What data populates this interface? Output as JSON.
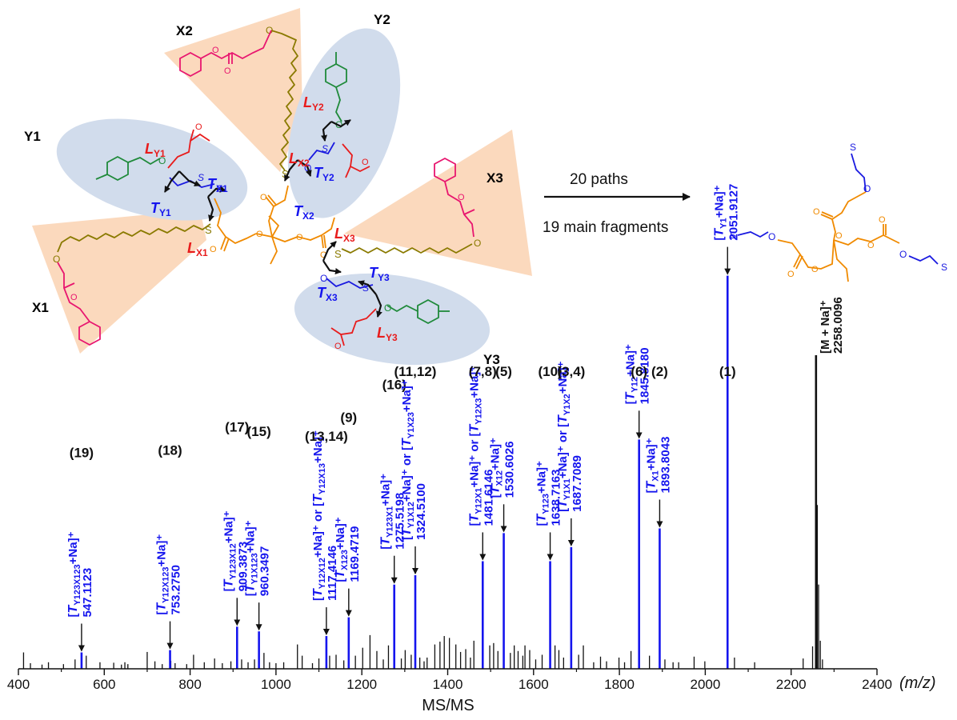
{
  "colors": {
    "arm_yellow": "#8a7a00",
    "benzyl_pink": "#e8166f",
    "tolyl_green": "#1f8a3a",
    "core_orange": "#f08a00",
    "thioether_blue": "#1a1ae0",
    "lactone_red": "#e81c1c",
    "fragment_blue": "#1515ee",
    "axis_black": "#111111",
    "arm_fill_salmon": "#fbd9bd",
    "arm_fill_blue": "#d1dcec"
  },
  "structure": {
    "arm_labels": {
      "x1": "X1",
      "x2": "X2",
      "x3": "X3",
      "y1": "Y1",
      "y2": "Y2",
      "y3": "Y3"
    },
    "cleavage_labels": [
      {
        "id": "l-y1",
        "main": "L",
        "sub": "Y1"
      },
      {
        "id": "t-y1",
        "main": "T",
        "sub": "Y1"
      },
      {
        "id": "t-x1",
        "main": "T",
        "sub": "X1"
      },
      {
        "id": "l-x1",
        "main": "L",
        "sub": "X1"
      },
      {
        "id": "l-y2",
        "main": "L",
        "sub": "Y2"
      },
      {
        "id": "l-x2",
        "main": "L",
        "sub": "X2"
      },
      {
        "id": "t-y2",
        "main": "T",
        "sub": "Y2"
      },
      {
        "id": "t-x2",
        "main": "T",
        "sub": "X2"
      },
      {
        "id": "l-x3",
        "main": "L",
        "sub": "X3"
      },
      {
        "id": "t-y3",
        "main": "T",
        "sub": "Y3"
      },
      {
        "id": "t-x3",
        "main": "T",
        "sub": "X3"
      },
      {
        "id": "l-y3",
        "main": "L",
        "sub": "Y3"
      }
    ],
    "atom_labels": {
      "oxygen": "O",
      "sulfur": "S"
    }
  },
  "reaction": {
    "paths": "20 paths",
    "fragments": "19 main fragments"
  },
  "chart_data": {
    "type": "bar",
    "xlabel": "MS/MS",
    "x_unit": "(m/z)",
    "xlim": [
      400,
      2400
    ],
    "xticks": [
      400,
      600,
      800,
      1000,
      1200,
      1400,
      1600,
      1800,
      2000,
      2200,
      2400
    ],
    "series": [
      {
        "values": [
          {
            "id": "f19",
            "num": "(19)",
            "sub": "Y123X123",
            "mass": "547.1123",
            "mz": 547.1123,
            "rel": 0.035,
            "prefix": "",
            "mid": "",
            "sub2": ""
          },
          {
            "id": "f18",
            "num": "(18)",
            "sub": "Y12X123",
            "mass": "753.2750",
            "mz": 753.275,
            "rel": 0.04,
            "prefix": "",
            "mid": "",
            "sub2": ""
          },
          {
            "id": "f17",
            "num": "(17)",
            "sub": "Y123X12",
            "mass": "909.3873",
            "mz": 909.3873,
            "rel": 0.09,
            "prefix": "",
            "mid": "",
            "sub2": ""
          },
          {
            "id": "f15",
            "num": "(15)",
            "sub": "Y1X123",
            "mass": "960.3497",
            "mz": 960.3497,
            "rel": 0.08,
            "prefix": "",
            "mid": "",
            "sub2": ""
          },
          {
            "id": "f13",
            "num": "(13,14)",
            "sub": "Y12X12",
            "mass": "1117.4146",
            "mz": 1117.4146,
            "rel": 0.07,
            "prefix": "",
            "mid": "+Na]⁺ or [",
            "sub2": "Y12X13"
          },
          {
            "id": "f9",
            "num": "(9)",
            "sub": "X123",
            "mass": "1169.4719",
            "mz": 1169.4719,
            "rel": 0.11,
            "prefix": "",
            "mid": "",
            "sub2": ""
          },
          {
            "id": "f16",
            "num": "(16)",
            "sub": "Y123X1",
            "mass": "1275.5198",
            "mz": 1275.5198,
            "rel": 0.18,
            "prefix": "",
            "mid": "",
            "sub2": ""
          },
          {
            "id": "f11",
            "num": "(11,12)",
            "sub": "Y1X12",
            "mass": "1324.5100",
            "mz": 1324.51,
            "rel": 0.2,
            "prefix": "",
            "mid": "+Na]⁺ or [",
            "sub2": "Y1X23"
          },
          {
            "id": "f7",
            "num": "(7,8)",
            "sub": "Y12X1",
            "mass": "1481.6146",
            "mz": 1481.6146,
            "rel": 0.23,
            "prefix": "",
            "mid": "+Na]⁺ or [",
            "sub2": "Y12X3"
          },
          {
            "id": "f5",
            "num": "(5)",
            "sub": "X12",
            "mass": "1530.6026",
            "mz": 1530.6026,
            "rel": 0.29,
            "prefix": "",
            "mid": "",
            "sub2": ""
          },
          {
            "id": "f10",
            "num": "(10)",
            "sub": "Y123",
            "mass": "1638.7163",
            "mz": 1638.7163,
            "rel": 0.23,
            "prefix": "",
            "mid": "",
            "sub2": ""
          },
          {
            "id": "f3",
            "num": "(3,4)",
            "sub": "Y1X1",
            "mass": "1687.7089",
            "mz": 1687.7089,
            "rel": 0.26,
            "prefix": "",
            "mid": "+Na]⁺ or [",
            "sub2": "Y1X2"
          },
          {
            "id": "f6",
            "num": "(6)",
            "sub": "Y12",
            "mass": "1845.8180",
            "mz": 1845.818,
            "rel": 0.49,
            "prefix": "",
            "mid": "",
            "sub2": ""
          },
          {
            "id": "f2",
            "num": "(2)",
            "sub": "X1",
            "mass": "1893.8043",
            "mz": 1893.8043,
            "rel": 0.3,
            "prefix": "",
            "mid": "",
            "sub2": ""
          },
          {
            "id": "f1",
            "num": "(1)",
            "sub": "Y1",
            "mass": "2051.9127",
            "mz": 2051.9127,
            "rel": 0.84,
            "prefix": "",
            "mid": "",
            "sub2": ""
          }
        ]
      },
      {
        "values": [
          {
            "id": "parent",
            "label": "[M + Na]⁺",
            "mass": "2258.0096",
            "mz": 2258.0096,
            "rel": 0.67
          }
        ]
      },
      {
        "values": [
          [
            412,
            0.035
          ],
          [
            428,
            0.012
          ],
          [
            455,
            0.009
          ],
          [
            470,
            0.014
          ],
          [
            505,
            0.01
          ],
          [
            532,
            0.02
          ],
          [
            547,
            0.035
          ],
          [
            558,
            0.028
          ],
          [
            590,
            0.014
          ],
          [
            622,
            0.013
          ],
          [
            640,
            0.009
          ],
          [
            648,
            0.014
          ],
          [
            655,
            0.01
          ],
          [
            700,
            0.036
          ],
          [
            718,
            0.016
          ],
          [
            735,
            0.01
          ],
          [
            755,
            0.017
          ],
          [
            765,
            0.012
          ],
          [
            792,
            0.01
          ],
          [
            808,
            0.03
          ],
          [
            833,
            0.014
          ],
          [
            857,
            0.022
          ],
          [
            875,
            0.012
          ],
          [
            895,
            0.016
          ],
          [
            920,
            0.02
          ],
          [
            935,
            0.014
          ],
          [
            950,
            0.02
          ],
          [
            972,
            0.034
          ],
          [
            985,
            0.014
          ],
          [
            1000,
            0.012
          ],
          [
            1018,
            0.014
          ],
          [
            1050,
            0.052
          ],
          [
            1061,
            0.028
          ],
          [
            1085,
            0.012
          ],
          [
            1100,
            0.022
          ],
          [
            1125,
            0.028
          ],
          [
            1140,
            0.03
          ],
          [
            1158,
            0.018
          ],
          [
            1185,
            0.028
          ],
          [
            1202,
            0.045
          ],
          [
            1219,
            0.072
          ],
          [
            1235,
            0.038
          ],
          [
            1250,
            0.02
          ],
          [
            1262,
            0.05
          ],
          [
            1292,
            0.022
          ],
          [
            1301,
            0.04
          ],
          [
            1315,
            0.03
          ],
          [
            1335,
            0.024
          ],
          [
            1345,
            0.016
          ],
          [
            1352,
            0.024
          ],
          [
            1370,
            0.052
          ],
          [
            1382,
            0.058
          ],
          [
            1392,
            0.07
          ],
          [
            1404,
            0.066
          ],
          [
            1419,
            0.052
          ],
          [
            1430,
            0.036
          ],
          [
            1442,
            0.042
          ],
          [
            1453,
            0.024
          ],
          [
            1461,
            0.06
          ],
          [
            1498,
            0.05
          ],
          [
            1507,
            0.055
          ],
          [
            1517,
            0.038
          ],
          [
            1546,
            0.034
          ],
          [
            1555,
            0.05
          ],
          [
            1564,
            0.038
          ],
          [
            1575,
            0.028
          ],
          [
            1580,
            0.05
          ],
          [
            1591,
            0.04
          ],
          [
            1605,
            0.02
          ],
          [
            1620,
            0.03
          ],
          [
            1650,
            0.05
          ],
          [
            1659,
            0.04
          ],
          [
            1670,
            0.024
          ],
          [
            1705,
            0.03
          ],
          [
            1716,
            0.05
          ],
          [
            1740,
            0.014
          ],
          [
            1756,
            0.026
          ],
          [
            1770,
            0.016
          ],
          [
            1799,
            0.024
          ],
          [
            1812,
            0.014
          ],
          [
            1827,
            0.038
          ],
          [
            1870,
            0.028
          ],
          [
            1906,
            0.02
          ],
          [
            1925,
            0.014
          ],
          [
            1938,
            0.014
          ],
          [
            1974,
            0.026
          ],
          [
            1999,
            0.016
          ],
          [
            2068,
            0.024
          ],
          [
            2115,
            0.014
          ],
          [
            2228,
            0.022
          ],
          [
            2250,
            0.048
          ],
          [
            2261,
            0.35
          ],
          [
            2264,
            0.18
          ],
          [
            2268,
            0.06
          ],
          [
            2273,
            0.02
          ]
        ]
      }
    ]
  }
}
